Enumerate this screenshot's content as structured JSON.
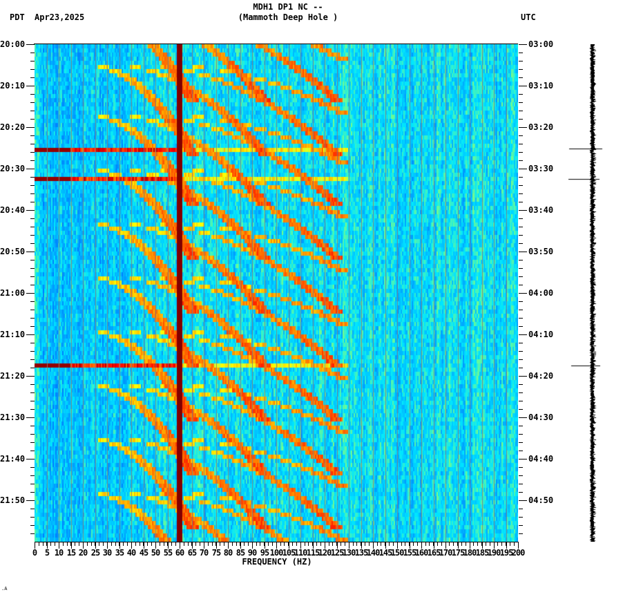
{
  "header": {
    "station_line": "MDH1 DP1 NC --",
    "station_name": "(Mammoth Deep Hole )",
    "left_timezone": "PDT",
    "date": "Apr23,2025",
    "right_timezone": "UTC"
  },
  "footer_mark": ".A",
  "chart_data": {
    "type": "heatmap",
    "title": "MDH1 DP1 NC -- (Mammoth Deep Hole )",
    "subtitle": "Apr23,2025",
    "xlabel": "FREQUENCY (HZ)",
    "ylabel_left": "PDT",
    "ylabel_right": "UTC",
    "xlim": [
      0,
      200
    ],
    "x_ticks": [
      0,
      5,
      10,
      15,
      20,
      25,
      30,
      35,
      40,
      45,
      50,
      55,
      60,
      65,
      70,
      75,
      80,
      85,
      90,
      95,
      100,
      105,
      110,
      115,
      120,
      125,
      130,
      135,
      140,
      145,
      150,
      155,
      160,
      165,
      170,
      175,
      180,
      185,
      190,
      195,
      200
    ],
    "y_range_minutes": 120,
    "y_ticks_left": [
      "20:00",
      "20:10",
      "20:20",
      "20:30",
      "20:40",
      "20:50",
      "21:00",
      "21:10",
      "21:20",
      "21:30",
      "21:40",
      "21:50"
    ],
    "y_ticks_right": [
      "03:00",
      "03:10",
      "03:20",
      "03:30",
      "03:40",
      "03:50",
      "04:00",
      "04:10",
      "04:20",
      "04:30",
      "04:40",
      "04:50"
    ],
    "minor_tick_interval_minutes": 1,
    "colormap": [
      "#0000c8",
      "#0050ff",
      "#00a0ff",
      "#00e6ff",
      "#80ff80",
      "#ffff00",
      "#ff8000",
      "#ff0000",
      "#800000"
    ],
    "persistent_lines_hz": [
      {
        "freq": 60,
        "intensity": "max",
        "color": "#800000"
      }
    ],
    "broadband_events": [
      {
        "pdt_time": "20:25",
        "utc_time": "03:25",
        "minute_offset": 25.2,
        "extent_hz": [
          0,
          60
        ]
      },
      {
        "pdt_time": "20:32",
        "utc_time": "03:32",
        "minute_offset": 32.5,
        "extent_hz": [
          0,
          60
        ]
      },
      {
        "pdt_time": "21:17",
        "utc_time": "04:17",
        "minute_offset": 77.5,
        "extent_hz": [
          0,
          60
        ]
      }
    ],
    "gliding_tone_cycles": {
      "description": "Repeating curved harmonic glides rising in frequency with time, resetting every ~13 minutes",
      "cycle_starts_minutes": [
        -8,
        5,
        17,
        30,
        43,
        56,
        69,
        82,
        95,
        108
      ],
      "fundamental_start_hz": 20,
      "fundamental_end_hz": 60,
      "harmonic_count": 4,
      "max_visible_hz": 130
    },
    "seismogram_events_minutes": [
      25.2,
      32.5,
      77.5
    ]
  }
}
